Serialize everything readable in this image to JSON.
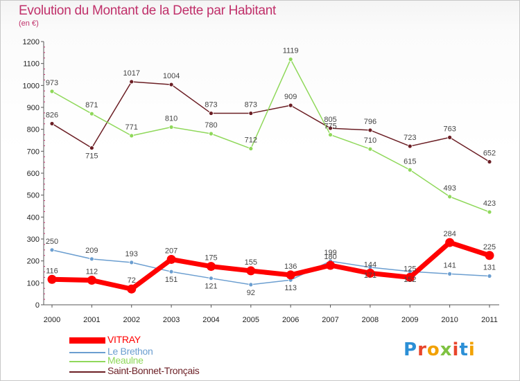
{
  "title": "Evolution du Montant de la Dette par Habitant",
  "subtitle": "(en €)",
  "chart_data": {
    "type": "line",
    "title": "Evolution du Montant de la Dette par Habitant",
    "subtitle": "(en €)",
    "ylim": [
      0,
      1200
    ],
    "yticks": [
      0,
      100,
      200,
      300,
      400,
      500,
      600,
      700,
      800,
      900,
      1000,
      1100,
      1200
    ],
    "x": [
      "2000",
      "2001",
      "2002",
      "2003",
      "2004",
      "2005",
      "2006",
      "2007",
      "2008",
      "2009",
      "2010",
      "2011"
    ],
    "grid": false,
    "legend_position": "bottom-left",
    "series": [
      {
        "name": "Saint-Bonnet-Tronçais",
        "color": "#6b1e24",
        "values": [
          826,
          715,
          1017,
          1004,
          873,
          873,
          909,
          805,
          796,
          723,
          763,
          652
        ]
      },
      {
        "name": "Meaulne",
        "color": "#8fd85a",
        "values": [
          973,
          871,
          771,
          810,
          780,
          712,
          1119,
          775,
          710,
          615,
          493,
          423
        ]
      },
      {
        "name": "Le Brethon",
        "color": "#6b9ed0",
        "values": [
          250,
          209,
          193,
          151,
          121,
          92,
          113,
          199,
          171,
          152,
          141,
          131
        ]
      },
      {
        "name": "VITRAY",
        "color": "#ff0000",
        "values": [
          116,
          112,
          72,
          207,
          175,
          155,
          136,
          180,
          144,
          125,
          284,
          225
        ]
      }
    ]
  },
  "legend": [
    {
      "label": "VITRAY",
      "color": "#ff0000"
    },
    {
      "label": "Le Brethon",
      "color": "#6b9ed0"
    },
    {
      "label": "Meaulne",
      "color": "#8fd85a"
    },
    {
      "label": "Saint-Bonnet-Tronçais",
      "color": "#6b1e24"
    }
  ],
  "logo": {
    "text": "Proxiti",
    "colors": [
      "#2b8fd6",
      "#e8452b",
      "#f2a100",
      "#7fc241",
      "#e8452b",
      "#2b8fd6",
      "#f2a100"
    ]
  }
}
